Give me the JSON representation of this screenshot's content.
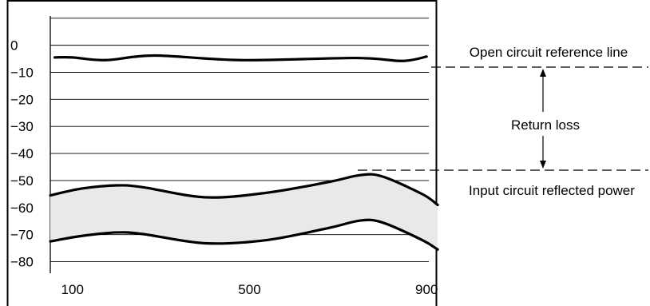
{
  "chart_data": {
    "type": "line",
    "title": "",
    "xlabel": "",
    "ylabel": "",
    "xlim": [
      50,
      905
    ],
    "ylim": [
      -89,
      12
    ],
    "x_ticks": [
      100,
      500,
      900
    ],
    "x_tick_labels": [
      "100",
      "500",
      "900"
    ],
    "y_ticks": [
      0,
      -10,
      -20,
      -30,
      -40,
      -50,
      -60,
      -70,
      -80
    ],
    "y_tick_labels": [
      "0",
      "−10",
      "−20",
      "−30",
      "−40",
      "−50",
      "−60",
      "−70",
      "−80"
    ],
    "grid_y": true,
    "grid_y_lines": [
      10,
      0,
      -10,
      -20,
      -30,
      -40,
      -50,
      -60,
      -70,
      -80
    ],
    "grid_x": false,
    "series": [
      {
        "x": [
          60,
          100,
          175,
          285,
          480,
          740,
          845,
          900
        ],
        "y": [
          -4.5,
          -4.5,
          -5.5,
          -3.8,
          -5.5,
          -4.7,
          -5.8,
          -4.2
        ]
      },
      {
        "x": [
          50,
          120,
          200,
          260,
          400,
          540,
          680,
          750,
          800,
          890,
          925
        ],
        "y": [
          -55.5,
          -53.0,
          -51.8,
          -52.5,
          -56.2,
          -54.5,
          -50.5,
          -48.0,
          -48.5,
          -55.0,
          -59.0
        ]
      },
      {
        "x": [
          50,
          120,
          200,
          260,
          400,
          540,
          680,
          750,
          800,
          890,
          925
        ],
        "y": [
          -72.5,
          -70.5,
          -69.2,
          -69.8,
          -73.2,
          -72.0,
          -67.5,
          -64.8,
          -65.5,
          -72.0,
          -75.5
        ]
      }
    ],
    "shaded_band": "between the two lower curves",
    "annotations": {
      "open_circuit": "Open circuit reference line",
      "return_loss": "Return loss",
      "reflected_power": "Input circuit reflected power"
    }
  }
}
